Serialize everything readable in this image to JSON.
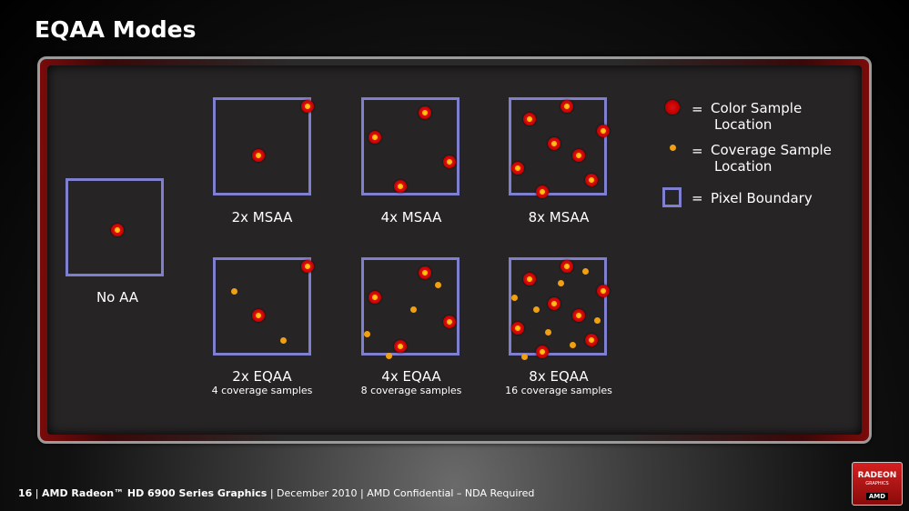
{
  "slide": {
    "title": "EQAA Modes"
  },
  "diagrams": {
    "no_aa": {
      "label": "No AA",
      "sub": ""
    },
    "msaa2": {
      "label": "2x MSAA",
      "sub": ""
    },
    "msaa4": {
      "label": "4x MSAA",
      "sub": ""
    },
    "msaa8": {
      "label": "8x MSAA",
      "sub": ""
    },
    "eqaa2": {
      "label": "2x EQAA",
      "sub": "4 coverage samples"
    },
    "eqaa4": {
      "label": "4x EQAA",
      "sub": "8 coverage samples"
    },
    "eqaa8": {
      "label": "8x EQAA",
      "sub": "16 coverage samples"
    }
  },
  "legend": {
    "equals": "=",
    "color_sample_line1": "Color Sample",
    "color_sample_line2": "Location",
    "coverage_sample_line1": "Coverage Sample",
    "coverage_sample_line2": "Location",
    "pixel_boundary": "Pixel Boundary"
  },
  "footer": {
    "page_number": "16",
    "product": "AMD Radeon™ HD 6900 Series Graphics",
    "rest": " | December 2010 | AMD Confidential – NDA Required",
    "sep": " | "
  },
  "logo": {
    "line1": "RADEON",
    "line2": "GRAPHICS",
    "line3": "AMD"
  },
  "colors": {
    "box_border": "#7f7fcf",
    "color_sample": "#d01010",
    "coverage_sample": "#f0a010"
  }
}
